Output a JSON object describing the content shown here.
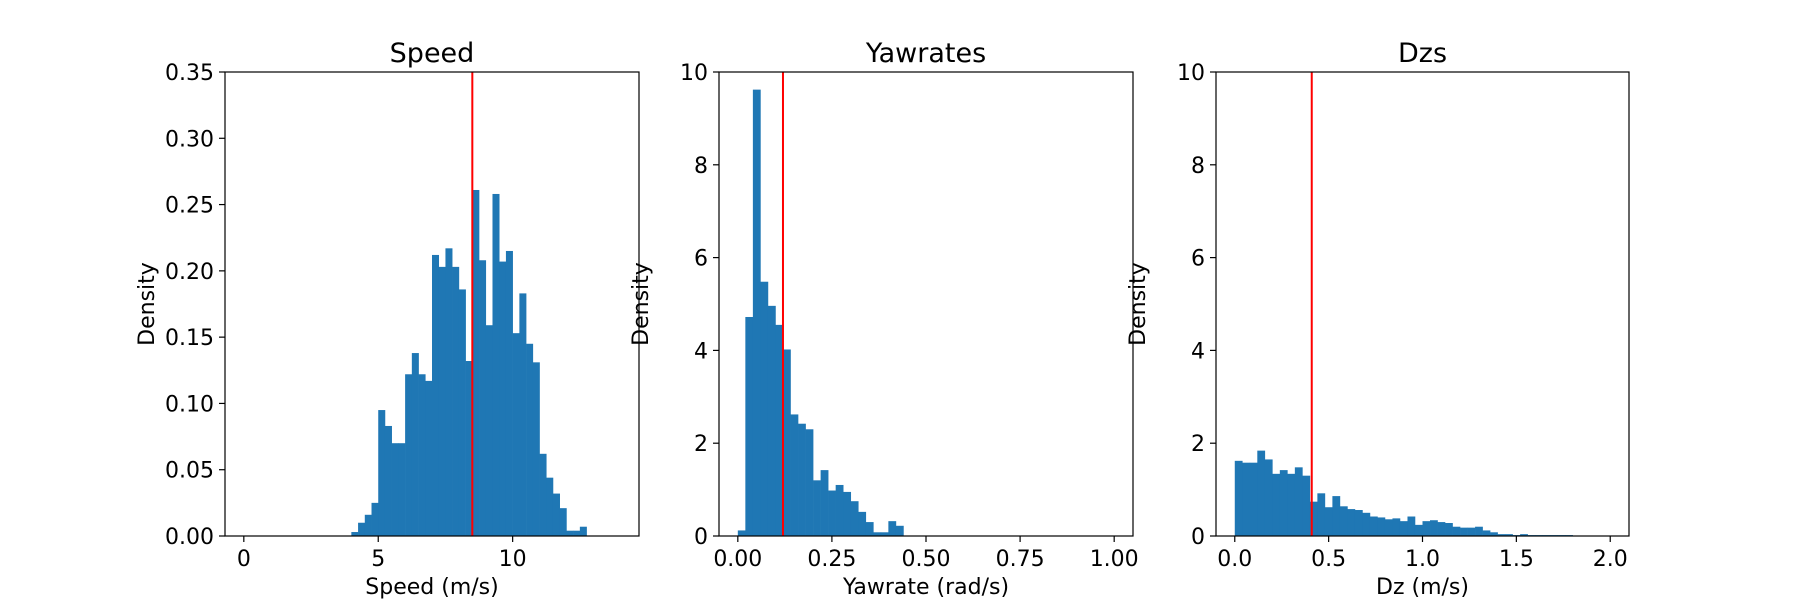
{
  "figure": {
    "bar_color": "#1f77b4",
    "vline_color": "#ff0000"
  },
  "chart_data": [
    {
      "type": "histogram",
      "title": "Speed",
      "xlabel": "Speed (m/s)",
      "ylabel": "Density",
      "xlim": [
        -0.7,
        14.7
      ],
      "ylim": [
        0,
        0.35
      ],
      "xticks": [
        0,
        5,
        10
      ],
      "xtick_labels": [
        "0",
        "5",
        "10"
      ],
      "yticks": [
        0,
        0.05,
        0.1,
        0.15,
        0.2,
        0.25,
        0.3,
        0.35
      ],
      "ytick_labels": [
        "0.00",
        "0.05",
        "0.10",
        "0.15",
        "0.20",
        "0.25",
        "0.30",
        "0.35"
      ],
      "bin_start": 4.0,
      "bin_width": 0.25,
      "densities": [
        0.003,
        0.01,
        0.016,
        0.025,
        0.095,
        0.083,
        0.07,
        0.07,
        0.122,
        0.138,
        0.122,
        0.117,
        0.212,
        0.203,
        0.217,
        0.203,
        0.186,
        0.132,
        0.261,
        0.208,
        0.159,
        0.258,
        0.207,
        0.215,
        0.153,
        0.183,
        0.145,
        0.131,
        0.062,
        0.044,
        0.032,
        0.021,
        0.004,
        0.004,
        0.007
      ],
      "vline": 8.5
    },
    {
      "type": "histogram",
      "title": "Yawrates",
      "xlabel": "Yawrate (rad/s)",
      "ylabel": "Density",
      "xlim": [
        -0.05,
        1.05
      ],
      "ylim": [
        0,
        10
      ],
      "xticks": [
        0,
        0.25,
        0.5,
        0.75,
        1.0
      ],
      "xtick_labels": [
        "0.00",
        "0.25",
        "0.50",
        "0.75",
        "1.00"
      ],
      "yticks": [
        0,
        2,
        4,
        6,
        8,
        10
      ],
      "ytick_labels": [
        "0",
        "2",
        "4",
        "6",
        "8",
        "10"
      ],
      "bin_start": 0.0,
      "bin_width": 0.02,
      "densities": [
        0.12,
        4.72,
        9.62,
        5.48,
        4.96,
        4.55,
        4.02,
        2.62,
        2.42,
        2.3,
        1.2,
        1.42,
        0.98,
        1.1,
        0.95,
        0.75,
        0.52,
        0.3,
        0.08,
        0.08,
        0.32,
        0.22
      ],
      "vline": 0.12
    },
    {
      "type": "histogram",
      "title": "Dzs",
      "xlabel": "Dz (m/s)",
      "ylabel": "Density",
      "xlim": [
        -0.1,
        2.1
      ],
      "ylim": [
        0,
        10
      ],
      "xticks": [
        0,
        0.5,
        1.0,
        1.5,
        2.0
      ],
      "xtick_labels": [
        "0.0",
        "0.5",
        "1.0",
        "1.5",
        "2.0"
      ],
      "yticks": [
        0,
        2,
        4,
        6,
        8,
        10
      ],
      "ytick_labels": [
        "0",
        "2",
        "4",
        "6",
        "8",
        "10"
      ],
      "bin_start": 0.0,
      "bin_width": 0.04,
      "densities": [
        1.62,
        1.58,
        1.58,
        1.84,
        1.65,
        1.34,
        1.42,
        1.34,
        1.48,
        1.3,
        0.74,
        0.92,
        0.62,
        0.86,
        0.64,
        0.58,
        0.56,
        0.5,
        0.42,
        0.4,
        0.36,
        0.38,
        0.32,
        0.42,
        0.24,
        0.32,
        0.34,
        0.3,
        0.28,
        0.2,
        0.18,
        0.18,
        0.2,
        0.12,
        0.08,
        0.04,
        0.04,
        0.02,
        0.04,
        0.02,
        0.02,
        0.02,
        0.02,
        0.02,
        0.02
      ],
      "vline": 0.41
    }
  ]
}
